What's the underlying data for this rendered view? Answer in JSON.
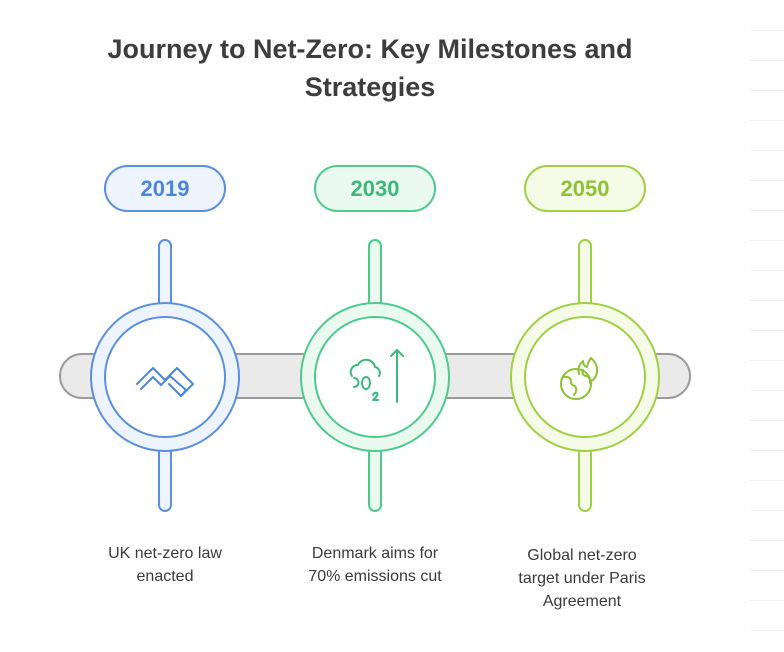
{
  "title": {
    "line1": "Journey to Net-Zero: Key Milestones and",
    "line2": "Strategies"
  },
  "milestones": [
    {
      "year": "2019",
      "icon": "handshake-icon",
      "caption_line1": "UK net-zero law",
      "caption_line2": "enacted",
      "caption_line3": "",
      "color": "#5a8fe0",
      "fill": "#eef4fd"
    },
    {
      "year": "2030",
      "icon": "co2-reduction-icon",
      "caption_line1": "Denmark aims for",
      "caption_line2": "70% emissions cut",
      "caption_line3": "",
      "color": "#4ccb8a",
      "fill": "#eafaf1"
    },
    {
      "year": "2050",
      "icon": "burning-globe-icon",
      "caption_line1": "Global net-zero",
      "caption_line2": "target under Paris",
      "caption_line3": "Agreement",
      "color": "#9ed043",
      "fill": "#f5fbe7"
    }
  ],
  "timeline_bar_color": "#eaeaea"
}
